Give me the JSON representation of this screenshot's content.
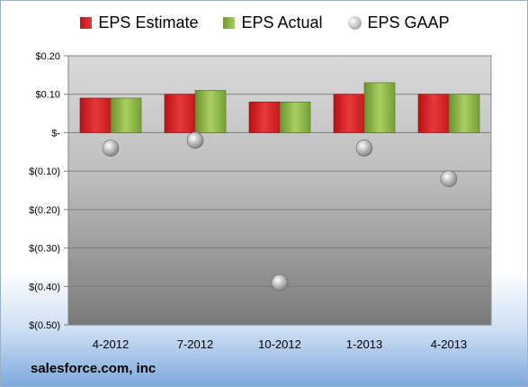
{
  "chart_data": {
    "type": "bar",
    "categories": [
      "4-2012",
      "7-2012",
      "10-2012",
      "1-2013",
      "4-2013"
    ],
    "series": [
      {
        "name": "EPS Estimate",
        "type": "bar",
        "color": "#d62a2a",
        "values": [
          0.09,
          0.1,
          0.08,
          0.1,
          0.1
        ]
      },
      {
        "name": "EPS Actual",
        "type": "bar",
        "color": "#8db548",
        "values": [
          0.09,
          0.11,
          0.08,
          0.13,
          0.1
        ]
      },
      {
        "name": "EPS GAAP",
        "type": "scatter",
        "color": "#a8a8a8",
        "values": [
          -0.04,
          -0.02,
          -0.39,
          -0.04,
          -0.12
        ]
      }
    ],
    "yticks": [
      0.2,
      0.1,
      0.0,
      -0.1,
      -0.2,
      -0.3,
      -0.4,
      -0.5
    ],
    "ytick_labels": [
      "$0.20",
      "$0.10",
      "$-",
      "$(0.10)",
      "$(0.20)",
      "$(0.30)",
      "$(0.40)",
      "$(0.50)"
    ],
    "ylim": [
      -0.5,
      0.2
    ],
    "legend_position": "top",
    "grid": true
  },
  "footer": {
    "company": "salesforce.com, inc"
  }
}
